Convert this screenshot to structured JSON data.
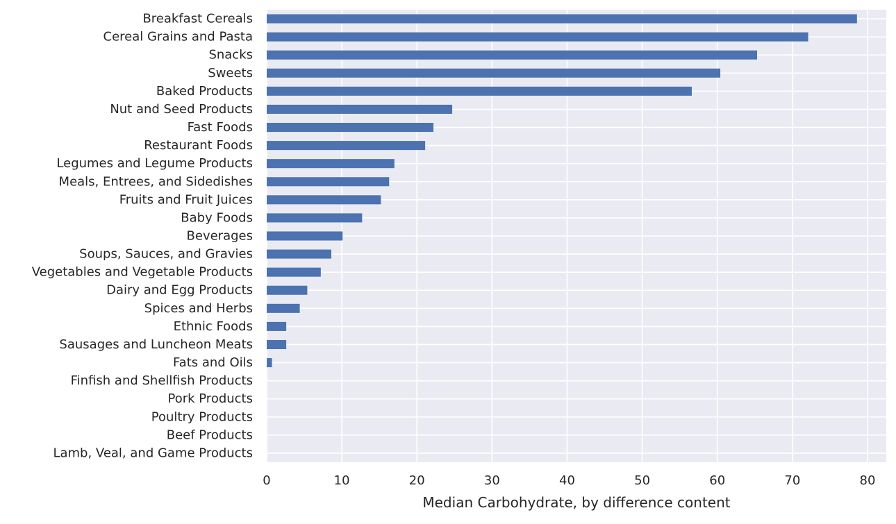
{
  "chart_data": {
    "type": "bar",
    "orientation": "horizontal",
    "title": "",
    "xlabel": "Median Carbohydrate, by difference content",
    "ylabel": "",
    "xlim": [
      0,
      82.5
    ],
    "x_ticks": [
      0,
      10,
      20,
      30,
      40,
      50,
      60,
      70,
      80
    ],
    "grid": true,
    "bar_color": "#4c72b0",
    "background_color": "#eaeaf2",
    "grid_color": "#ffffff",
    "categories": [
      "Breakfast Cereals",
      "Cereal Grains and Pasta",
      "Snacks",
      "Sweets",
      "Baked Products",
      "Nut and Seed Products",
      "Fast Foods",
      "Restaurant Foods",
      "Legumes and Legume Products",
      "Meals, Entrees, and Sidedishes",
      "Fruits and Fruit Juices",
      "Baby Foods",
      "Beverages",
      "Soups, Sauces, and Gravies",
      "Vegetables and Vegetable Products",
      "Dairy and Egg Products",
      "Spices and Herbs",
      "Ethnic Foods",
      "Sausages and Luncheon Meats",
      "Fats and Oils",
      "Finfish and Shellfish Products",
      "Pork Products",
      "Poultry Products",
      "Beef Products",
      "Lamb, Veal, and Game Products"
    ],
    "values": [
      78.6,
      72.1,
      65.3,
      60.4,
      56.6,
      24.7,
      22.2,
      21.1,
      17.0,
      16.3,
      15.2,
      12.7,
      10.1,
      8.6,
      7.2,
      5.4,
      4.4,
      2.6,
      2.6,
      0.7,
      0,
      0,
      0,
      0,
      0
    ]
  }
}
